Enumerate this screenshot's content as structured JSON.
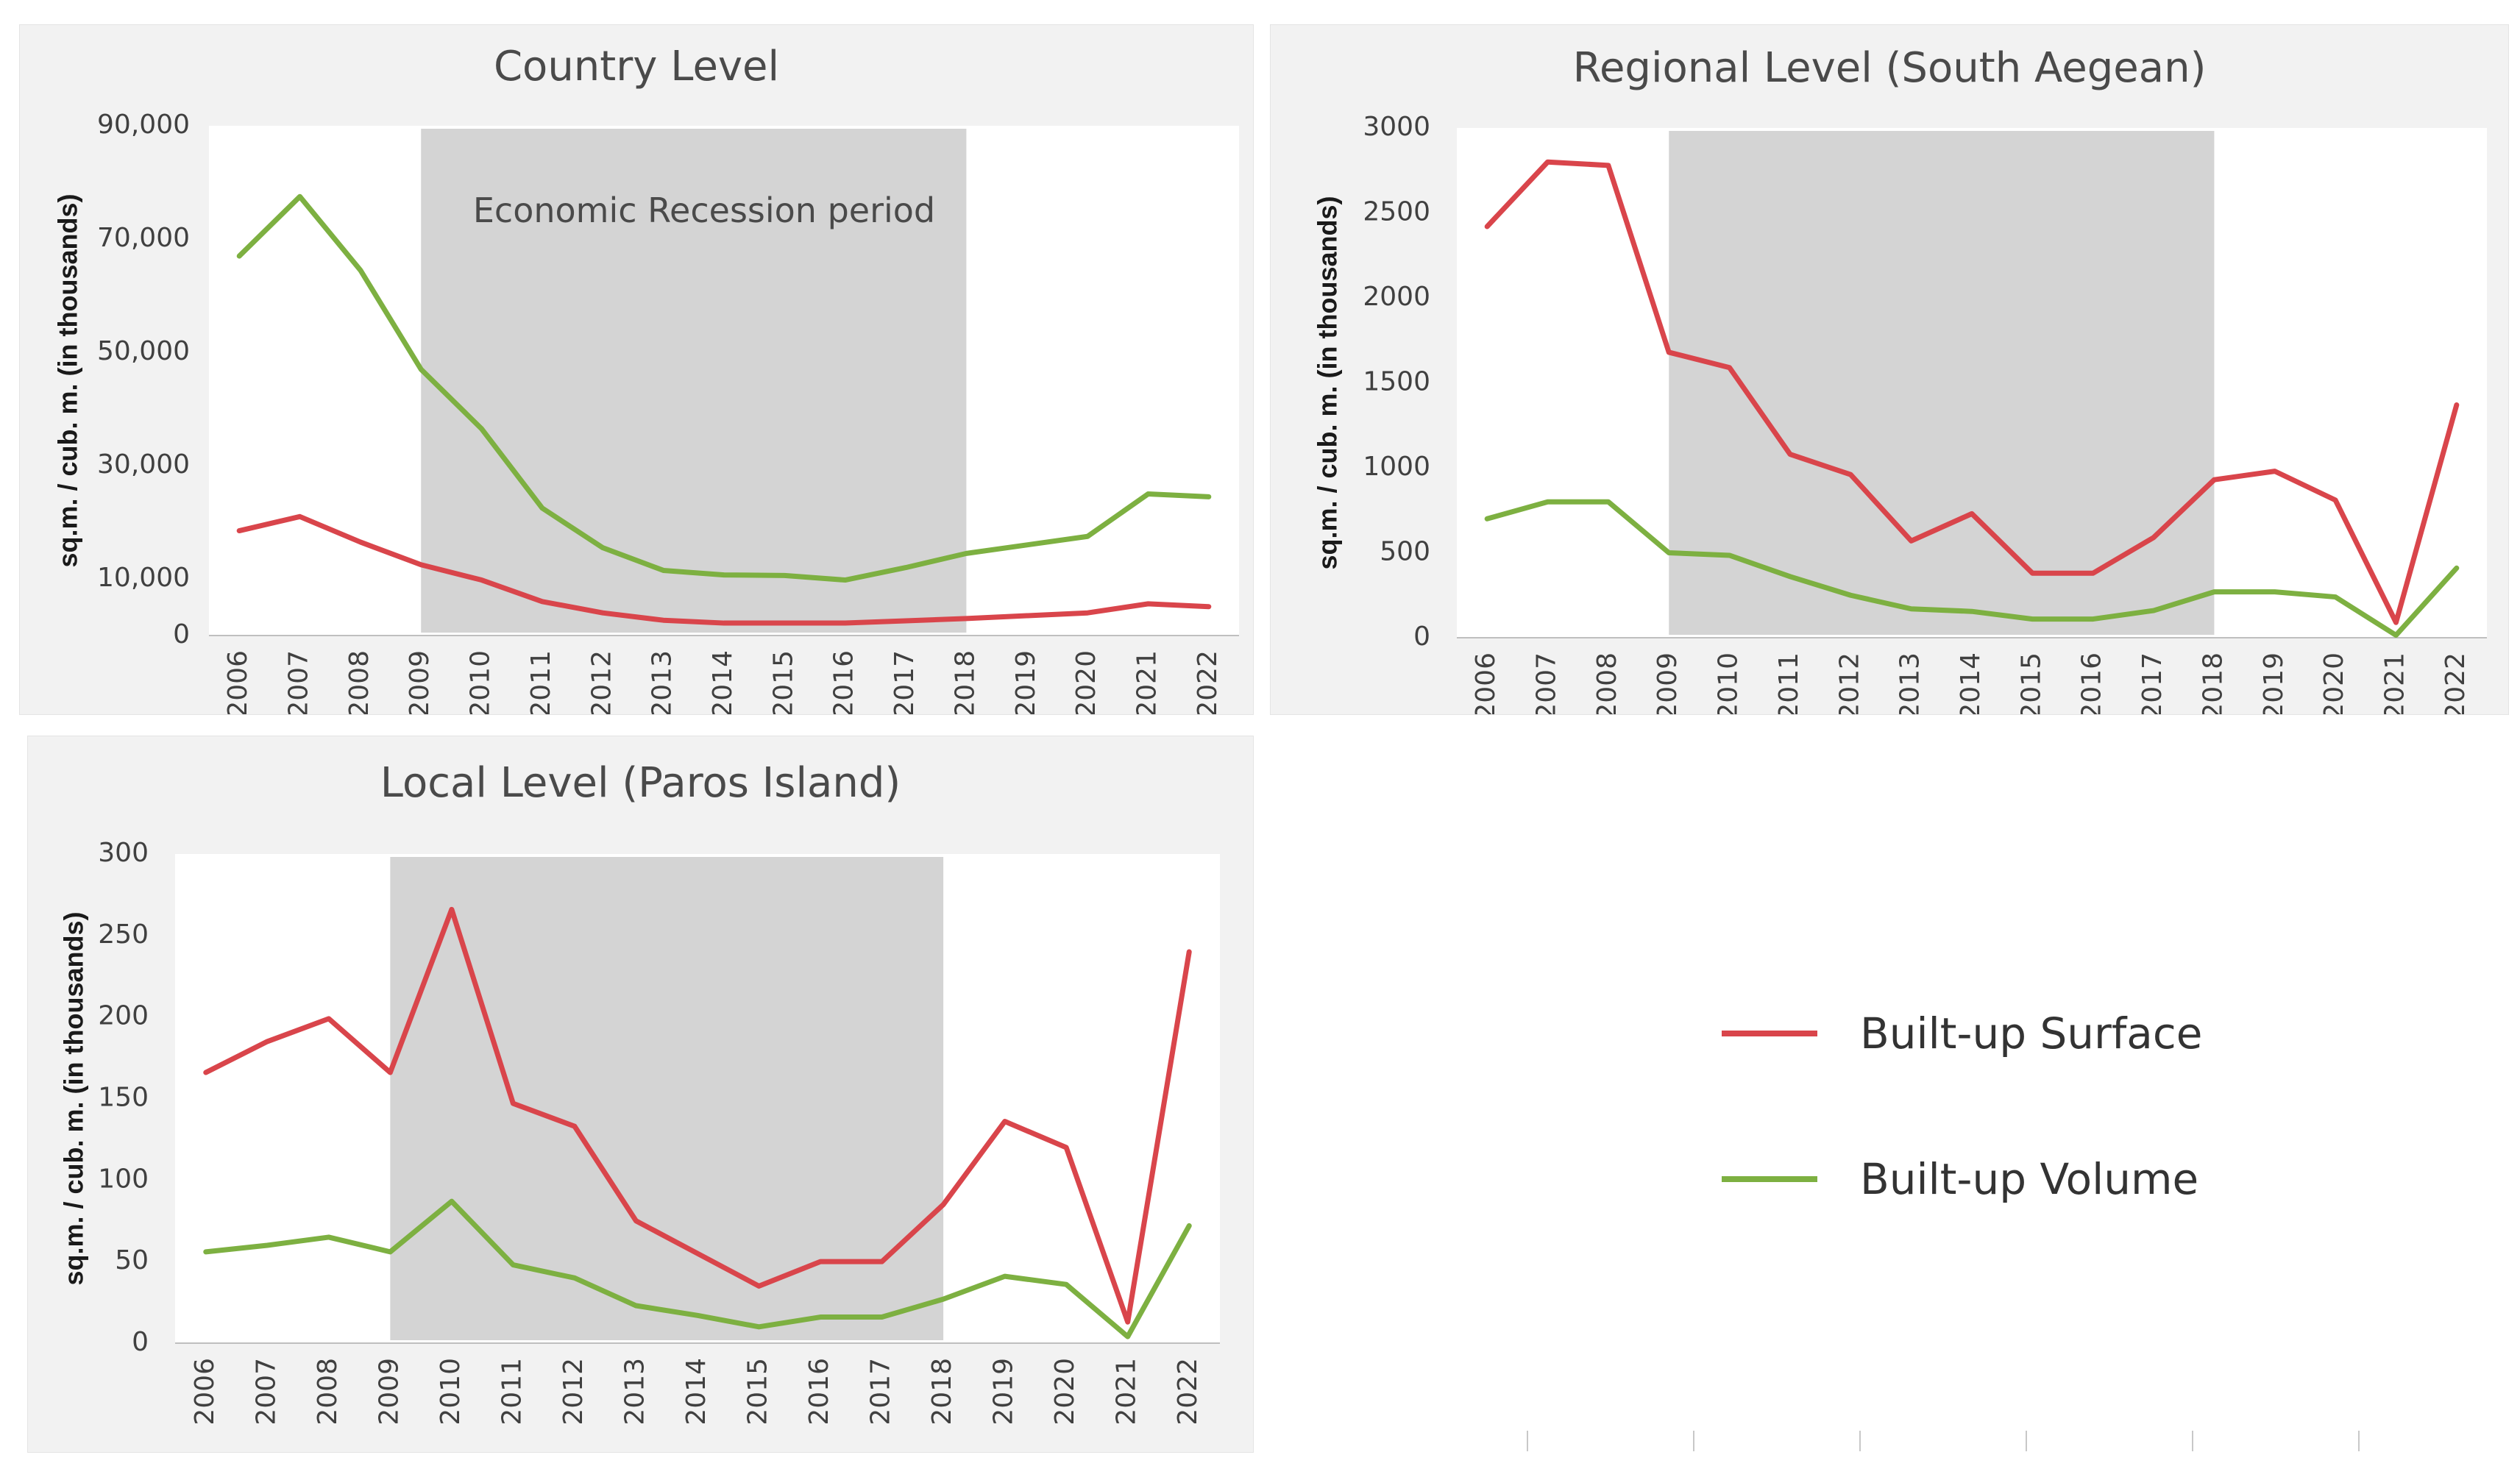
{
  "colors": {
    "surface": "#d9454b",
    "volume": "#7db041",
    "recession": "#d4d4d4",
    "axis": "#bfbfbf"
  },
  "legend": {
    "surface_label": "Built-up Surface",
    "volume_label": "Built-up Volume"
  },
  "chart_data": [
    {
      "type": "line",
      "title": "Country Level",
      "xlabel": "",
      "ylabel": "sq.m. / cub. m. (in thousands)",
      "x": [
        "2006",
        "2007",
        "2008",
        "2009",
        "2010",
        "2011",
        "2012",
        "2013",
        "2014",
        "2015",
        "2016",
        "2017",
        "2018",
        "2019",
        "2020",
        "2021",
        "2022"
      ],
      "ylim": [
        0,
        90000
      ],
      "yticks": [
        0,
        10000,
        30000,
        50000,
        70000,
        90000
      ],
      "ytick_labels": [
        "0",
        "10,000",
        "30,000",
        "50,000",
        "70,000",
        "90,000"
      ],
      "annotation": "Economic Recession period",
      "shaded_period": [
        "2009",
        "2018"
      ],
      "series": [
        {
          "name": "Built-up Surface",
          "values": [
            18500,
            21000,
            16500,
            12500,
            9800,
            6000,
            4000,
            2700,
            2200,
            2200,
            2200,
            2600,
            3000,
            3500,
            4000,
            5600,
            5100
          ]
        },
        {
          "name": "Built-up Volume",
          "values": [
            67000,
            77500,
            64500,
            47000,
            36500,
            22500,
            15500,
            11500,
            10700,
            10600,
            9800,
            12000,
            14500,
            16000,
            17500,
            25000,
            24500
          ]
        }
      ]
    },
    {
      "type": "line",
      "title": "Regional Level (South Aegean)",
      "xlabel": "",
      "ylabel": "sq.m. / cub. m. (in thousands)",
      "x": [
        "2006",
        "2007",
        "2008",
        "2009",
        "2010",
        "2011",
        "2012",
        "2013",
        "2014",
        "2015",
        "2016",
        "2017",
        "2018",
        "2019",
        "2020",
        "2021",
        "2022"
      ],
      "ylim": [
        0,
        3000
      ],
      "yticks": [
        0,
        500,
        1000,
        1500,
        2000,
        2500,
        3000
      ],
      "ytick_labels": [
        "0",
        "500",
        "1000",
        "1500",
        "2000",
        "2500",
        "3000"
      ],
      "shaded_period": [
        "2009",
        "2018"
      ],
      "series": [
        {
          "name": "Built-up Surface",
          "values": [
            2420,
            2800,
            2780,
            1680,
            1590,
            1080,
            960,
            570,
            730,
            380,
            380,
            590,
            930,
            980,
            810,
            90,
            1370
          ]
        },
        {
          "name": "Built-up Volume",
          "values": [
            700,
            800,
            800,
            500,
            485,
            360,
            250,
            170,
            155,
            110,
            110,
            160,
            270,
            270,
            240,
            15,
            410
          ]
        }
      ]
    },
    {
      "type": "line",
      "title": "Local Level (Paros Island)",
      "xlabel": "",
      "ylabel": "sq.m. / cub. m. (in thousands)",
      "x": [
        "2006",
        "2007",
        "2008",
        "2009",
        "2010",
        "2011",
        "2012",
        "2013",
        "2014",
        "2015",
        "2016",
        "2017",
        "2018",
        "2019",
        "2020",
        "2021",
        "2022"
      ],
      "ylim": [
        0,
        300
      ],
      "yticks": [
        0,
        50,
        100,
        150,
        200,
        250,
        300
      ],
      "ytick_labels": [
        "0",
        "50",
        "100",
        "150",
        "200",
        "250",
        "300"
      ],
      "shaded_period": [
        "2009",
        "2018"
      ],
      "series": [
        {
          "name": "Built-up Surface",
          "values": [
            166,
            185,
            199,
            166,
            266,
            147,
            133,
            75,
            55,
            35,
            50,
            50,
            85,
            136,
            120,
            13,
            240
          ]
        },
        {
          "name": "Built-up Volume",
          "values": [
            56,
            60,
            65,
            56,
            87,
            48,
            40,
            23,
            17,
            10,
            16,
            16,
            27,
            41,
            36,
            4,
            72
          ]
        }
      ]
    }
  ]
}
